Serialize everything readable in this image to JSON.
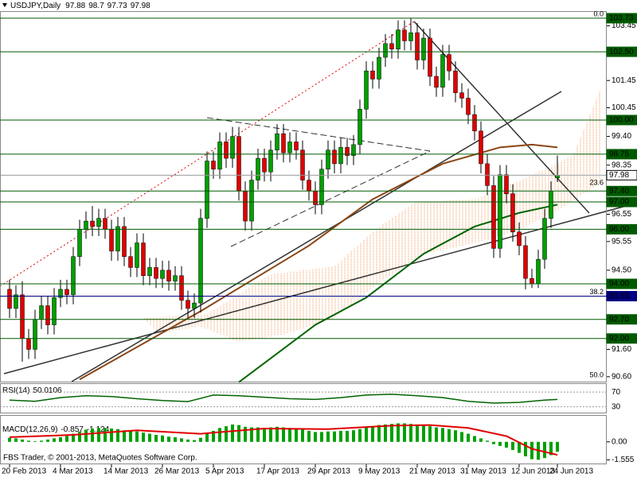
{
  "chart_data": {
    "type": "candlestick",
    "symbol": "USDJPY,Daily",
    "up_color": "#00a000",
    "down_color": "#e00000",
    "ylim": [
      90.42,
      103.96
    ],
    "yticks": [
      103.45,
      101.45,
      100.45,
      {
        "value": 99.4,
        "label": "99.40"
      },
      98.35,
      96.55,
      95.55,
      {
        "value": 94.5,
        "label": "94.50"
      },
      {
        "value": 91.6,
        "label": "91.60"
      },
      {
        "value": 90.6,
        "label": "90.60"
      }
    ],
    "levels": [
      {
        "value": 103.73,
        "color": "#005a00"
      },
      {
        "value": 102.5,
        "label": "102.50",
        "color": "#005a00"
      },
      {
        "value": 100,
        "label": "100.00",
        "color": "#005a00"
      },
      {
        "value": 98.75,
        "color": "#005a00"
      },
      {
        "value": 97.98,
        "color": "#ffffff"
      },
      {
        "value": 97.4,
        "label": "97.40",
        "color": "#005a00"
      },
      {
        "value": 97,
        "label": "97.00",
        "color": "#005a00"
      },
      {
        "value": 96,
        "label": "96.00",
        "color": "#005a00"
      },
      {
        "value": 94,
        "label": "94.00",
        "color": "#005a00"
      },
      {
        "value": 93.55,
        "color": "#000080"
      },
      {
        "value": 92.7,
        "label": "92.70",
        "color": "#005a00"
      },
      {
        "value": 92,
        "label": "92.00",
        "color": "#005a00"
      }
    ],
    "fibo": {
      "color": "#a040c0",
      "levels": [
        {
          "label": "0.0",
          "price": 103.73
        },
        {
          "label": "23.6",
          "price": 97.55
        },
        {
          "label": "38.2",
          "price": 93.55
        },
        {
          "label": "50.0",
          "price": 90.5
        }
      ]
    },
    "categories": [
      "20 Feb 2013",
      null,
      null,
      null,
      null,
      null,
      null,
      null,
      "4 Mar 2013",
      null,
      null,
      null,
      null,
      null,
      null,
      null,
      "14 Mar 2013",
      null,
      null,
      null,
      null,
      null,
      null,
      null,
      "26 Mar 2013",
      null,
      null,
      null,
      null,
      null,
      null,
      null,
      "5 Apr 2013",
      null,
      null,
      null,
      null,
      null,
      null,
      null,
      "17 Apr 2013",
      null,
      null,
      null,
      null,
      null,
      null,
      null,
      "29 Apr 2013",
      null,
      null,
      null,
      null,
      null,
      null,
      null,
      "9 May 2013",
      null,
      null,
      null,
      null,
      null,
      null,
      null,
      "21 May 2013",
      null,
      null,
      null,
      null,
      null,
      null,
      null,
      "31 May 2013",
      null,
      null,
      null,
      null,
      null,
      null,
      null,
      "12 Jun 2013",
      null,
      null,
      null,
      null,
      null,
      "24 Jun 2013"
    ],
    "ohlc": [
      [
        93.8,
        94.15,
        92.75,
        93.1
      ],
      [
        93.1,
        93.95,
        92.75,
        93.6
      ],
      [
        93.6,
        94.1,
        91.15,
        92.0
      ],
      [
        92.0,
        92.35,
        91.25,
        91.6
      ],
      [
        91.6,
        93.05,
        91.25,
        92.7
      ],
      [
        92.7,
        93.55,
        92.35,
        93.2
      ],
      [
        93.2,
        93.55,
        92.15,
        92.5
      ],
      [
        92.5,
        93.85,
        92.15,
        93.5
      ],
      [
        93.5,
        94.15,
        93.15,
        93.8
      ],
      [
        93.8,
        94.15,
        93.25,
        93.6
      ],
      [
        93.6,
        95.35,
        93.25,
        95.0
      ],
      [
        95.0,
        96.35,
        94.65,
        96.0
      ],
      [
        96.0,
        96.65,
        95.65,
        96.3
      ],
      [
        96.3,
        96.85,
        95.75,
        96.1
      ],
      [
        96.1,
        96.75,
        95.75,
        96.4
      ],
      [
        96.4,
        96.75,
        95.65,
        96.0
      ],
      [
        96.0,
        96.35,
        94.85,
        95.2
      ],
      [
        95.2,
        96.45,
        94.85,
        96.1
      ],
      [
        96.1,
        96.45,
        94.65,
        95.0
      ],
      [
        95.0,
        95.35,
        94.25,
        94.6
      ],
      [
        94.6,
        95.85,
        94.25,
        95.5
      ],
      [
        95.5,
        95.85,
        93.95,
        94.3
      ],
      [
        94.3,
        94.95,
        93.95,
        94.6
      ],
      [
        94.6,
        94.95,
        93.85,
        94.2
      ],
      [
        94.2,
        94.85,
        93.85,
        94.5
      ],
      [
        94.5,
        94.85,
        93.75,
        94.1
      ],
      [
        94.1,
        94.65,
        93.75,
        94.3
      ],
      [
        94.3,
        94.65,
        93.05,
        93.4
      ],
      [
        93.4,
        93.75,
        92.75,
        93.1
      ],
      [
        93.1,
        93.65,
        92.75,
        93.3
      ],
      [
        93.3,
        96.75,
        92.95,
        96.4
      ],
      [
        96.4,
        98.85,
        96.05,
        98.5
      ],
      [
        98.5,
        98.85,
        97.85,
        98.2
      ],
      [
        98.2,
        99.55,
        97.85,
        99.2
      ],
      [
        99.2,
        99.55,
        98.25,
        98.6
      ],
      [
        98.6,
        99.75,
        98.25,
        99.4
      ],
      [
        99.4,
        99.75,
        97.05,
        97.4
      ],
      [
        97.4,
        97.75,
        95.95,
        96.3
      ],
      [
        96.3,
        98.15,
        95.95,
        97.8
      ],
      [
        97.8,
        98.95,
        97.45,
        98.6
      ],
      [
        98.6,
        98.95,
        97.75,
        98.1
      ],
      [
        98.1,
        99.25,
        97.75,
        98.9
      ],
      [
        98.9,
        99.85,
        98.55,
        99.5
      ],
      [
        99.5,
        99.85,
        98.45,
        98.8
      ],
      [
        98.8,
        99.55,
        98.45,
        99.2
      ],
      [
        99.2,
        99.55,
        98.55,
        98.9
      ],
      [
        98.9,
        99.25,
        97.45,
        97.8
      ],
      [
        97.8,
        98.15,
        97.05,
        97.4
      ],
      [
        97.4,
        97.75,
        96.55,
        96.9
      ],
      [
        96.9,
        98.55,
        96.55,
        98.2
      ],
      [
        98.2,
        99.25,
        97.85,
        98.9
      ],
      [
        98.9,
        99.25,
        98.05,
        98.4
      ],
      [
        98.4,
        99.35,
        98.05,
        99.0
      ],
      [
        99.0,
        99.35,
        98.35,
        98.7
      ],
      [
        98.7,
        99.45,
        98.35,
        99.1
      ],
      [
        99.1,
        100.75,
        98.75,
        100.4
      ],
      [
        100.4,
        102.15,
        100.05,
        101.8
      ],
      [
        101.8,
        102.15,
        101.15,
        101.5
      ],
      [
        101.5,
        102.65,
        101.15,
        102.3
      ],
      [
        102.3,
        103.15,
        101.95,
        102.8
      ],
      [
        102.8,
        103.15,
        102.25,
        102.6
      ],
      [
        102.6,
        103.65,
        102.25,
        103.3
      ],
      [
        103.3,
        103.65,
        102.55,
        102.9
      ],
      [
        102.9,
        103.73,
        102.55,
        103.2
      ],
      [
        103.2,
        103.55,
        101.85,
        102.2
      ],
      [
        102.2,
        103.35,
        101.85,
        103.0
      ],
      [
        103.0,
        103.35,
        101.25,
        101.6
      ],
      [
        101.6,
        101.95,
        100.85,
        101.2
      ],
      [
        101.2,
        102.75,
        100.85,
        102.4
      ],
      [
        102.4,
        102.75,
        101.45,
        101.8
      ],
      [
        101.8,
        102.15,
        100.65,
        101.0
      ],
      [
        101.0,
        101.35,
        100.45,
        100.8
      ],
      [
        100.8,
        101.15,
        99.85,
        100.2
      ],
      [
        100.2,
        100.55,
        99.25,
        99.6
      ],
      [
        99.6,
        99.95,
        98.05,
        98.4
      ],
      [
        98.4,
        98.75,
        97.25,
        97.6
      ],
      [
        97.6,
        97.95,
        94.95,
        95.3
      ],
      [
        95.3,
        98.35,
        94.95,
        98.0
      ],
      [
        98.0,
        98.35,
        96.95,
        97.3
      ],
      [
        97.3,
        97.65,
        95.55,
        95.9
      ],
      [
        95.9,
        96.25,
        95.05,
        95.4
      ],
      [
        95.4,
        95.75,
        93.8,
        94.2
      ],
      [
        94.2,
        94.55,
        93.85,
        94.0
      ],
      [
        94.0,
        95.25,
        93.85,
        94.9
      ],
      [
        94.9,
        96.75,
        94.55,
        96.4
      ],
      [
        96.4,
        97.75,
        96.05,
        97.4
      ],
      [
        97.88,
        98.7,
        97.73,
        97.98
      ]
    ],
    "ma": [
      {
        "color": "#8b4513",
        "x": [
          11,
          30,
          47,
          57,
          68,
          77,
          82,
          86
        ],
        "values": [
          90.5,
          93.0,
          95.4,
          97.1,
          98.4,
          99.0,
          99.1,
          99.0
        ]
      },
      {
        "color": "#006400",
        "x": [
          36,
          48,
          56,
          65,
          73,
          80,
          86
        ],
        "values": [
          90.4,
          92.5,
          93.5,
          95.1,
          96.1,
          96.6,
          96.9
        ]
      }
    ],
    "rsi": {
      "label": "RSI(14)",
      "color": "#006400",
      "ylim": [
        14,
        92
      ],
      "yticks": [
        70,
        30
      ],
      "x": [
        0,
        4,
        8,
        12,
        16,
        20,
        24,
        28,
        32,
        36,
        40,
        44,
        48,
        52,
        56,
        60,
        64,
        68,
        72,
        76,
        80,
        84,
        86
      ],
      "values": [
        48,
        45,
        55,
        60,
        58,
        52,
        47,
        44,
        62,
        60,
        56,
        52,
        50,
        55,
        62,
        64,
        60,
        55,
        45,
        40,
        42,
        48,
        50.0106
      ]
    },
    "macd": {
      "label": "MACD(12,26,9)",
      "color": "#00a000",
      "signal_color": "#e00000",
      "ylim": [
        -1.94,
        2.25
      ],
      "yticks": [
        {
          "value": 0,
          "label": "0.00"
        },
        -1.555
      ],
      "hist": [
        0.35,
        0.3,
        0.2,
        0.1,
        0.05,
        0.1,
        0.2,
        0.3,
        0.4,
        0.5,
        0.7,
        0.9,
        1.05,
        1.15,
        1.2,
        1.2,
        1.15,
        1.1,
        1.0,
        0.95,
        0.9,
        0.8,
        0.7,
        0.6,
        0.55,
        0.45,
        0.4,
        0.3,
        0.2,
        0.15,
        0.35,
        0.7,
        0.95,
        1.2,
        1.35,
        1.5,
        1.45,
        1.3,
        1.25,
        1.25,
        1.2,
        1.25,
        1.3,
        1.25,
        1.2,
        1.15,
        1.05,
        0.95,
        0.85,
        0.85,
        0.9,
        0.9,
        0.95,
        0.95,
        1.0,
        1.1,
        1.25,
        1.35,
        1.45,
        1.5,
        1.55,
        1.6,
        1.6,
        1.55,
        1.5,
        1.45,
        1.35,
        1.25,
        1.2,
        1.1,
        1.0,
        0.85,
        0.7,
        0.5,
        0.3,
        0.1,
        -0.2,
        -0.35,
        -0.5,
        -0.7,
        -0.95,
        -1.25,
        -1.5,
        -1.55,
        -1.4,
        -1.15,
        -0.857
      ],
      "signal": {
        "x": [
          0,
          10,
          20,
          30,
          40,
          50,
          60,
          66,
          72,
          78,
          82,
          86
        ],
        "values": [
          0.4,
          0.6,
          1.0,
          0.7,
          1.15,
          1.1,
          1.4,
          1.45,
          1.2,
          0.5,
          -0.6,
          -1.124
        ]
      }
    },
    "watermark": "FBS Trader, © 2001-2013, MetaQuotes Software Corp."
  }
}
